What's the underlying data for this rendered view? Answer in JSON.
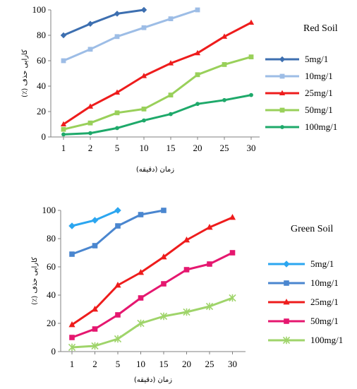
{
  "chart_data": [
    {
      "type": "line",
      "title": "",
      "legend_title": "Red Soil",
      "legend_placement": "right",
      "xlabel": "زمان (دقیقه)",
      "ylabel": "کارایی حذف (٪)",
      "categories": [
        "1",
        "2",
        "5",
        "10",
        "15",
        "20",
        "25",
        "30"
      ],
      "ylim": [
        0,
        100
      ],
      "yticks": [
        0,
        20,
        40,
        60,
        80,
        100
      ],
      "grid": false,
      "series": [
        {
          "name": "5mg/1",
          "color": "#3d6fb0",
          "marker": "diamond",
          "values": [
            80,
            89,
            97,
            100,
            null,
            null,
            null,
            null
          ]
        },
        {
          "name": "10mg/1",
          "color": "#9dbde6",
          "marker": "square",
          "values": [
            60,
            69,
            79,
            86,
            93,
            100,
            null,
            null
          ]
        },
        {
          "name": "25mg/1",
          "color": "#ee1c1c",
          "marker": "triangle",
          "values": [
            10,
            24,
            35,
            48,
            58,
            66,
            79,
            90
          ]
        },
        {
          "name": "50mg/1",
          "color": "#99d05a",
          "marker": "square",
          "values": [
            6,
            11,
            19,
            22,
            33,
            49,
            57,
            63
          ]
        },
        {
          "name": "100mg/1",
          "color": "#1ea96a",
          "marker": "circle",
          "values": [
            2,
            3,
            7,
            13,
            18,
            26,
            29,
            33
          ]
        }
      ]
    },
    {
      "type": "line",
      "title": "",
      "legend_title": "Green Soil",
      "legend_placement": "right",
      "xlabel": "زمان (دقیقه)",
      "ylabel": "کارایی حذف (٪)",
      "categories": [
        "1",
        "2",
        "5",
        "10",
        "15",
        "20",
        "25",
        "30"
      ],
      "ylim": [
        0,
        100
      ],
      "yticks": [
        0,
        20,
        40,
        60,
        80,
        100
      ],
      "grid": false,
      "series": [
        {
          "name": "5mg/1",
          "color": "#2ba6f0",
          "marker": "diamond",
          "values": [
            89,
            93,
            100,
            null,
            null,
            null,
            null,
            null
          ]
        },
        {
          "name": "10mg/1",
          "color": "#4a86cf",
          "marker": "square",
          "values": [
            69,
            75,
            89,
            97,
            100,
            null,
            null,
            null
          ]
        },
        {
          "name": "25mg/1",
          "color": "#ee1c1c",
          "marker": "triangle",
          "values": [
            19,
            30,
            47,
            56,
            67,
            79,
            88,
            95
          ]
        },
        {
          "name": "50mg/1",
          "color": "#e5176f",
          "marker": "square",
          "values": [
            10,
            16,
            26,
            38,
            48,
            58,
            62,
            70
          ]
        },
        {
          "name": "100mg/1",
          "color": "#9fd46a",
          "marker": "star",
          "values": [
            3,
            4,
            9,
            20,
            25,
            28,
            32,
            38
          ]
        }
      ]
    }
  ]
}
